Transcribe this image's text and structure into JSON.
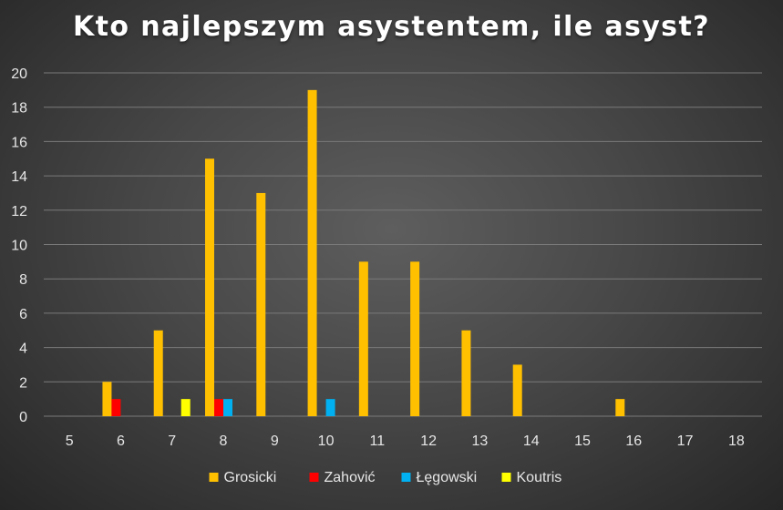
{
  "chart_data": {
    "type": "bar",
    "title": "Kto najlepszym asystentem, ile asyst?",
    "categories": [
      "5",
      "6",
      "7",
      "8",
      "9",
      "10",
      "11",
      "12",
      "13",
      "14",
      "15",
      "16",
      "17",
      "18"
    ],
    "series": [
      {
        "name": "Grosicki",
        "color": "#ffc000",
        "values": [
          0,
          2,
          5,
          15,
          13,
          19,
          9,
          9,
          5,
          3,
          0,
          1,
          0,
          0
        ]
      },
      {
        "name": "Zahović",
        "color": "#ff0000",
        "values": [
          0,
          1,
          0,
          1,
          0,
          0,
          0,
          0,
          0,
          0,
          0,
          0,
          0,
          0
        ]
      },
      {
        "name": "Łęgowski",
        "color": "#00b0f0",
        "values": [
          0,
          0,
          0,
          1,
          0,
          1,
          0,
          0,
          0,
          0,
          0,
          0,
          0,
          0
        ]
      },
      {
        "name": "Koutris",
        "color": "#ffff00",
        "values": [
          0,
          0,
          1,
          0,
          0,
          0,
          0,
          0,
          0,
          0,
          0,
          0,
          0,
          0
        ]
      }
    ],
    "ylim": [
      0,
      20
    ],
    "yticks": [
      0,
      2,
      4,
      6,
      8,
      10,
      12,
      14,
      16,
      18,
      20
    ],
    "grid": true,
    "legend_position": "bottom"
  }
}
